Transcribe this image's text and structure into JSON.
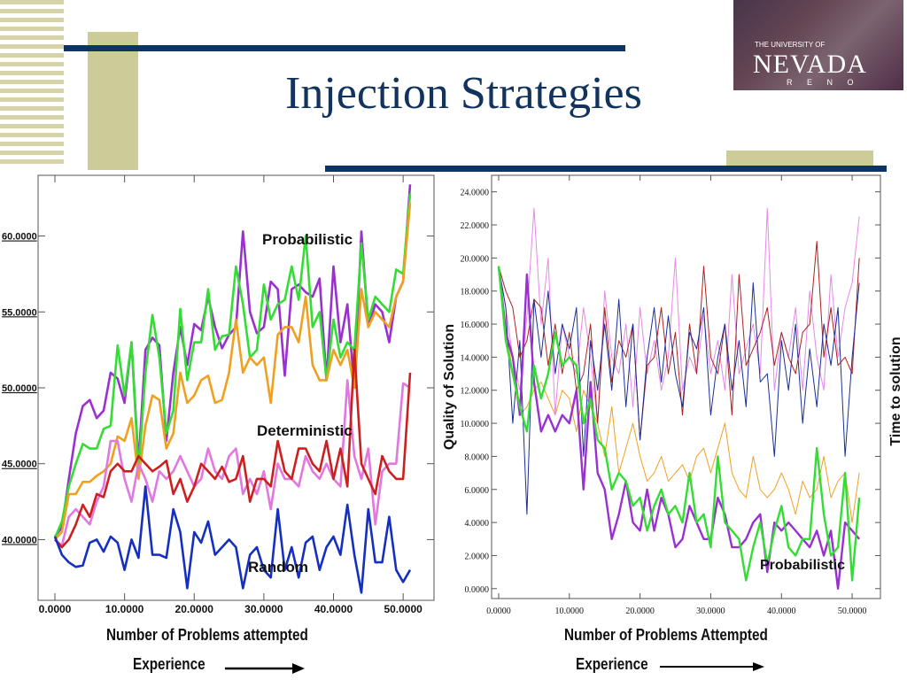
{
  "slide": {
    "title": "Injection Strategies",
    "logo": {
      "university_line": "THE UNIVERSITY OF",
      "name": "NEVADA",
      "city": "R E N O"
    }
  },
  "chart_data": [
    {
      "type": "line",
      "xlabel": "Number of Problems attempted",
      "note": "Experience",
      "x": [
        0,
        1,
        2,
        3,
        4,
        5,
        6,
        7,
        8,
        9,
        10,
        11,
        12,
        13,
        14,
        15,
        16,
        17,
        18,
        19,
        20,
        21,
        22,
        23,
        24,
        25,
        26,
        27,
        28,
        29,
        30,
        31,
        32,
        33,
        34,
        35,
        36,
        37,
        38,
        39,
        40,
        41,
        42,
        43,
        44,
        45,
        46,
        47,
        48,
        49,
        50,
        51
      ],
      "xlim": [
        0,
        51
      ],
      "ylim": [
        36,
        64
      ],
      "xticks": [
        "0.0000",
        "10.0000",
        "20.0000",
        "30.0000",
        "40.0000",
        "50.0000"
      ],
      "xtick_values": [
        0,
        10,
        20,
        30,
        40,
        50
      ],
      "yticks": [
        "40.0000",
        "45.0000",
        "50.0000",
        "55.0000",
        "60.0000"
      ],
      "ytick_values": [
        40,
        45,
        50,
        55,
        60
      ],
      "annotations": [
        "Probabilistic",
        "Deterministic",
        "Random"
      ],
      "series": [
        {
          "color": "#9b30d0",
          "values": [
            40.2,
            40.8,
            44.0,
            47.0,
            48.8,
            49.2,
            48.0,
            48.5,
            51.0,
            50.6,
            49.0,
            53.0,
            45.0,
            52.5,
            53.3,
            52.8,
            46.5,
            51.0,
            54.0,
            51.5,
            54.2,
            53.8,
            56.0,
            54.0,
            52.6,
            53.5,
            54.0,
            60.3,
            55.0,
            53.6,
            54.0,
            57.0,
            56.5,
            50.8,
            56.5,
            56.8,
            56.3,
            56.0,
            57.2,
            50.5,
            58.0,
            53.0,
            55.5,
            50.0,
            60.3,
            54.0,
            55.5,
            55.0,
            53.0,
            56.0,
            57.0,
            63.4
          ]
        },
        {
          "color": "#33dd33",
          "values": [
            40.1,
            41.2,
            43.5,
            45.0,
            46.3,
            46.0,
            46.0,
            47.3,
            47.5,
            52.8,
            49.5,
            53.0,
            44.5,
            51.0,
            54.8,
            52.0,
            47.0,
            48.5,
            55.2,
            50.5,
            53.0,
            53.0,
            56.5,
            52.5,
            53.4,
            53.5,
            58.0,
            55.5,
            52.0,
            52.5,
            56.8,
            54.5,
            55.5,
            55.8,
            58.0,
            55.8,
            60.0,
            54.0,
            55.0,
            50.5,
            54.5,
            52.0,
            53.0,
            52.5,
            59.5,
            54.5,
            56.0,
            55.5,
            55.0,
            57.8,
            57.5,
            62.8
          ]
        },
        {
          "color": "#f0a020",
          "values": [
            40.0,
            40.5,
            43.0,
            43.0,
            43.8,
            43.8,
            44.2,
            44.5,
            45.0,
            46.8,
            46.5,
            48.0,
            44.0,
            47.5,
            49.5,
            49.2,
            46.0,
            47.0,
            51.0,
            49.0,
            49.5,
            50.5,
            50.8,
            49.0,
            49.2,
            51.0,
            54.5,
            51.0,
            52.0,
            51.5,
            52.0,
            49.0,
            53.5,
            54.0,
            54.0,
            53.0,
            56.0,
            51.5,
            50.5,
            50.5,
            52.5,
            51.5,
            52.5,
            50.0,
            56.5,
            54.0,
            55.0,
            54.5,
            54.0,
            56.0,
            57.0,
            62.2
          ]
        },
        {
          "color": "#e078e0",
          "values": [
            40.0,
            39.6,
            41.5,
            42.0,
            41.5,
            41.0,
            42.5,
            43.5,
            46.5,
            46.5,
            44.0,
            42.5,
            45.0,
            44.0,
            42.5,
            44.5,
            44.0,
            44.5,
            45.5,
            44.5,
            43.5,
            44.0,
            46.0,
            44.5,
            44.0,
            45.5,
            46.0,
            43.0,
            44.0,
            43.0,
            44.5,
            42.0,
            45.0,
            44.0,
            44.0,
            43.5,
            45.5,
            44.5,
            44.0,
            45.0,
            44.0,
            43.5,
            50.5,
            45.5,
            44.0,
            46.0,
            41.0,
            44.5,
            45.0,
            45.0,
            50.3,
            50.0
          ]
        },
        {
          "color": "#cc2020",
          "values": [
            40.0,
            39.5,
            40.0,
            41.0,
            42.3,
            41.5,
            43.0,
            42.8,
            44.5,
            45.0,
            44.5,
            44.5,
            45.5,
            45.0,
            44.5,
            44.8,
            45.2,
            43.0,
            44.0,
            42.5,
            43.5,
            45.0,
            44.5,
            44.0,
            44.8,
            43.8,
            44.0,
            45.5,
            42.5,
            44.0,
            44.0,
            43.5,
            46.5,
            44.5,
            44.0,
            46.0,
            46.0,
            45.0,
            44.5,
            46.5,
            44.0,
            46.0,
            43.5,
            52.5,
            45.0,
            44.0,
            43.0,
            45.5,
            44.5,
            44.0,
            44.0,
            51.0
          ]
        },
        {
          "color": "#1530c0",
          "values": [
            40.2,
            39.0,
            38.5,
            38.2,
            38.3,
            39.8,
            40.0,
            39.2,
            40.2,
            39.8,
            38.0,
            40.0,
            38.8,
            43.5,
            39.0,
            39.0,
            38.8,
            42.0,
            40.5,
            36.8,
            40.5,
            39.8,
            41.2,
            39.0,
            39.5,
            40.0,
            39.5,
            36.8,
            39.0,
            39.5,
            38.0,
            37.5,
            42.0,
            38.0,
            39.5,
            37.5,
            39.8,
            40.2,
            38.0,
            39.5,
            40.2,
            39.0,
            42.3,
            39.0,
            36.5,
            42.0,
            38.5,
            38.5,
            41.5,
            38.0,
            37.2,
            38.0
          ]
        }
      ]
    },
    {
      "type": "line",
      "xlabel": "Number of Problems Attempted",
      "ylabel": "Quality of Solution",
      "y2label": "Time to solution",
      "note": "Experience",
      "x": [
        0,
        1,
        2,
        3,
        4,
        5,
        6,
        7,
        8,
        9,
        10,
        11,
        12,
        13,
        14,
        15,
        16,
        17,
        18,
        19,
        20,
        21,
        22,
        23,
        24,
        25,
        26,
        27,
        28,
        29,
        30,
        31,
        32,
        33,
        34,
        35,
        36,
        37,
        38,
        39,
        40,
        41,
        42,
        43,
        44,
        45,
        46,
        47,
        48,
        49,
        50,
        51
      ],
      "xlim": [
        -1,
        54
      ],
      "ylim": [
        -0.6,
        25
      ],
      "xticks": [
        "0.0000",
        "10.0000",
        "20.0000",
        "30.0000",
        "40.0000",
        "50.0000"
      ],
      "xtick_values": [
        0,
        10,
        20,
        30,
        40,
        50
      ],
      "yticks": [
        "0.0000",
        "2.0000",
        "4.0000",
        "6.0000",
        "8.0000",
        "10.0000",
        "12.0000",
        "14.0000",
        "16.0000",
        "18.0000",
        "20.0000",
        "22.0000",
        "24.0000"
      ],
      "ytick_values": [
        0,
        2,
        4,
        6,
        8,
        10,
        12,
        14,
        16,
        18,
        20,
        22,
        24
      ],
      "annotations": [
        "Probabilistic"
      ],
      "series": [
        {
          "color": "#9b30d0",
          "width": 2.4,
          "values": [
            19.5,
            15.5,
            14.0,
            10.5,
            19.0,
            12.5,
            9.5,
            10.5,
            9.5,
            10.5,
            10.0,
            12.0,
            6.0,
            12.5,
            7.0,
            6.0,
            3.0,
            4.5,
            6.5,
            4.0,
            3.5,
            6.0,
            3.5,
            5.5,
            4.5,
            2.5,
            3.0,
            5.0,
            4.0,
            3.0,
            3.0,
            5.5,
            4.5,
            2.5,
            2.5,
            3.0,
            4.0,
            4.5,
            1.0,
            4.0,
            3.5,
            4.0,
            3.5,
            3.0,
            2.5,
            3.5,
            2.0,
            3.5,
            0.0,
            4.0,
            3.5,
            3.0
          ]
        },
        {
          "color": "#33dd33",
          "width": 2.4,
          "values": [
            19.5,
            15.0,
            13.0,
            11.0,
            9.5,
            13.5,
            11.5,
            13.0,
            15.5,
            13.5,
            14.0,
            13.5,
            10.0,
            11.5,
            9.0,
            8.5,
            6.0,
            7.0,
            6.5,
            5.0,
            5.5,
            3.5,
            5.0,
            6.0,
            4.5,
            5.0,
            4.0,
            7.0,
            4.0,
            4.5,
            2.5,
            8.0,
            4.0,
            3.5,
            3.0,
            0.5,
            2.5,
            4.0,
            1.5,
            3.5,
            5.0,
            2.5,
            2.0,
            3.0,
            3.0,
            8.5,
            4.5,
            2.0,
            2.5,
            7.0,
            0.5,
            5.5
          ]
        },
        {
          "color": "#f0a020",
          "width": 1,
          "values": [
            19.5,
            16.0,
            13.0,
            10.5,
            11.0,
            12.0,
            12.5,
            11.5,
            10.5,
            12.0,
            11.5,
            9.5,
            12.0,
            11.0,
            10.0,
            8.0,
            11.0,
            7.0,
            8.5,
            10.0,
            8.0,
            6.5,
            7.0,
            8.0,
            6.5,
            7.0,
            7.5,
            6.5,
            8.0,
            8.5,
            7.0,
            8.5,
            10.0,
            7.0,
            6.0,
            5.5,
            8.0,
            6.0,
            5.5,
            6.0,
            7.0,
            6.0,
            4.5,
            6.5,
            5.5,
            6.0,
            8.0,
            5.5,
            6.5,
            7.0,
            4.0,
            7.0
          ]
        },
        {
          "color": "#e888e8",
          "width": 1,
          "values": [
            19.5,
            17.0,
            14.0,
            12.0,
            16.5,
            23.0,
            16.0,
            20.0,
            10.5,
            16.0,
            14.0,
            13.0,
            17.0,
            14.0,
            10.0,
            18.0,
            14.0,
            13.0,
            16.0,
            11.0,
            17.0,
            13.0,
            15.0,
            12.0,
            14.0,
            20.0,
            12.0,
            14.0,
            13.0,
            16.5,
            13.0,
            15.0,
            12.0,
            19.0,
            13.0,
            14.5,
            16.0,
            13.0,
            23.0,
            12.0,
            15.5,
            14.0,
            17.0,
            12.0,
            18.0,
            14.0,
            12.0,
            19.0,
            14.0,
            17.0,
            18.5,
            22.5
          ]
        },
        {
          "color": "#b02020",
          "width": 1,
          "values": [
            19.5,
            18.0,
            17.0,
            14.0,
            15.0,
            17.5,
            17.0,
            13.5,
            16.0,
            13.0,
            15.5,
            12.0,
            13.0,
            16.0,
            10.0,
            17.0,
            12.5,
            15.0,
            14.0,
            16.0,
            9.0,
            13.5,
            14.0,
            17.0,
            13.0,
            15.5,
            10.5,
            16.0,
            13.0,
            19.5,
            14.0,
            13.0,
            16.0,
            10.5,
            19.0,
            13.5,
            14.5,
            15.5,
            17.0,
            13.5,
            15.5,
            14.0,
            13.0,
            15.5,
            16.0,
            21.0,
            14.0,
            17.0,
            13.5,
            14.0,
            13.0,
            20.0
          ]
        },
        {
          "color": "#1a2e9a",
          "width": 1,
          "values": [
            19.5,
            17.0,
            10.0,
            15.0,
            4.5,
            17.5,
            14.0,
            18.0,
            13.0,
            16.0,
            14.5,
            17.0,
            8.0,
            15.0,
            12.0,
            16.0,
            12.0,
            17.5,
            11.0,
            16.0,
            9.0,
            14.0,
            17.0,
            12.5,
            16.5,
            13.0,
            11.0,
            15.5,
            14.5,
            17.0,
            10.5,
            14.0,
            16.0,
            12.0,
            15.0,
            11.0,
            18.5,
            12.5,
            13.0,
            8.0,
            15.0,
            12.0,
            16.0,
            10.0,
            14.5,
            11.0,
            16.0,
            13.5,
            17.0,
            8.0,
            14.0,
            18.5
          ]
        }
      ]
    }
  ]
}
